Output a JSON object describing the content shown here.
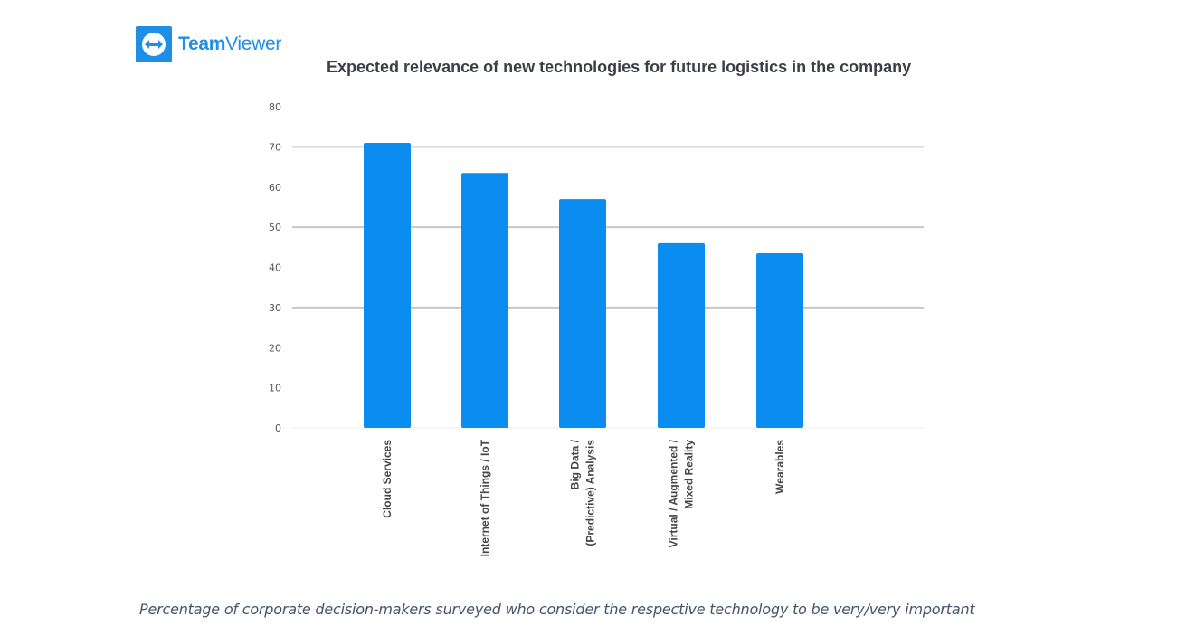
{
  "brand": {
    "name_bold": "Team",
    "name_light": "Viewer",
    "icon": "teamviewer-double-arrow-icon",
    "color": "#1d8fe6"
  },
  "caption": "Percentage of corporate decision-makers surveyed who consider the respective technology to be very/very important",
  "chart_data": {
    "type": "bar",
    "title": "Expected relevance of new technologies for future logistics in the company",
    "xlabel": "",
    "ylabel": "",
    "ylim": [
      0,
      80
    ],
    "yticks": [
      0,
      10,
      20,
      30,
      40,
      50,
      60,
      70,
      80
    ],
    "grid": "horizontal at 30, 50, 70",
    "legend": "none",
    "bar_color": "#0a8cf0",
    "categories": [
      [
        "Cloud Services"
      ],
      [
        "Internet of Things / IoT"
      ],
      [
        "Big Data /",
        "(Predictive)  Analysis"
      ],
      [
        "Virtual / Augmented /",
        "Mixed Reality"
      ],
      [
        "Wearables"
      ]
    ],
    "category_names": [
      "Cloud Services",
      "Internet of Things / IoT",
      "Big Data / (Predictive) Analysis",
      "Virtual / Augmented / Mixed Reality",
      "Wearables"
    ],
    "values": [
      71,
      63.5,
      57,
      46,
      43.5
    ]
  }
}
